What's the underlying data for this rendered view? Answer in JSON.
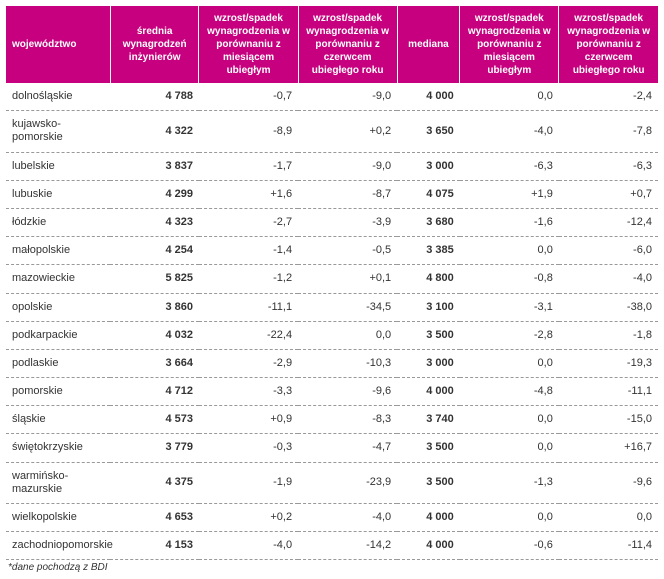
{
  "table": {
    "headers": [
      "województwo",
      "średnia wynagrodzeń inżynierów",
      "wzrost/spadek wynagrodzenia w porównaniu z miesiącem ubiegłym",
      "wzrost/spadek wynagrodzenia w porównaniu z czerwcem ubiegłego roku",
      "mediana",
      "wzrost/spadek wynagrodzenia w porównaniu z miesiącem ubiegłym",
      "wzrost/spadek wynagrodzenia w porównaniu z czerwcem ubiegłego roku"
    ],
    "rows": [
      {
        "region": "dolnośląskie",
        "avg": "4 788",
        "d1": "-0,7",
        "d2": "-9,0",
        "median": "4 000",
        "d3": "0,0",
        "d4": "-2,4"
      },
      {
        "region": "kujawsko-pomorskie",
        "avg": "4 322",
        "d1": "-8,9",
        "d2": "+0,2",
        "median": "3 650",
        "d3": "-4,0",
        "d4": "-7,8"
      },
      {
        "region": "lubelskie",
        "avg": "3 837",
        "d1": "-1,7",
        "d2": "-9,0",
        "median": "3 000",
        "d3": "-6,3",
        "d4": "-6,3"
      },
      {
        "region": "lubuskie",
        "avg": "4 299",
        "d1": "+1,6",
        "d2": "-8,7",
        "median": "4 075",
        "d3": "+1,9",
        "d4": "+0,7"
      },
      {
        "region": "łódzkie",
        "avg": "4 323",
        "d1": "-2,7",
        "d2": "-3,9",
        "median": "3 680",
        "d3": "-1,6",
        "d4": "-12,4"
      },
      {
        "region": "małopolskie",
        "avg": "4 254",
        "d1": "-1,4",
        "d2": "-0,5",
        "median": "3 385",
        "d3": "0,0",
        "d4": "-6,0"
      },
      {
        "region": "mazowieckie",
        "avg": "5 825",
        "d1": "-1,2",
        "d2": "+0,1",
        "median": "4 800",
        "d3": "-0,8",
        "d4": "-4,0"
      },
      {
        "region": "opolskie",
        "avg": "3 860",
        "d1": "-11,1",
        "d2": "-34,5",
        "median": "3 100",
        "d3": "-3,1",
        "d4": "-38,0"
      },
      {
        "region": "podkarpackie",
        "avg": "4 032",
        "d1": "-22,4",
        "d2": "0,0",
        "median": "3 500",
        "d3": "-2,8",
        "d4": "-1,8"
      },
      {
        "region": "podlaskie",
        "avg": "3 664",
        "d1": "-2,9",
        "d2": "-10,3",
        "median": "3 000",
        "d3": "0,0",
        "d4": "-19,3"
      },
      {
        "region": "pomorskie",
        "avg": "4 712",
        "d1": "-3,3",
        "d2": "-9,6",
        "median": "4 000",
        "d3": "-4,8",
        "d4": "-11,1"
      },
      {
        "region": "śląskie",
        "avg": "4 573",
        "d1": "+0,9",
        "d2": "-8,3",
        "median": "3 740",
        "d3": "0,0",
        "d4": "-15,0"
      },
      {
        "region": "świętokrzyskie",
        "avg": "3 779",
        "d1": "-0,3",
        "d2": "-4,7",
        "median": "3 500",
        "d3": "0,0",
        "d4": "+16,7"
      },
      {
        "region": "warmińsko-mazurskie",
        "avg": "4 375",
        "d1": "-1,9",
        "d2": "-23,9",
        "median": "3 500",
        "d3": "-1,3",
        "d4": "-9,6"
      },
      {
        "region": "wielkopolskie",
        "avg": "4 653",
        "d1": "+0,2",
        "d2": "-4,0",
        "median": "4 000",
        "d3": "0,0",
        "d4": "0,0"
      },
      {
        "region": "zachodniopomorskie",
        "avg": "4 153",
        "d1": "-4,0",
        "d2": "-14,2",
        "median": "4 000",
        "d3": "-0,6",
        "d4": "-11,4"
      }
    ],
    "footnote": "*dane pochodzą z BDI",
    "header_bg": "#c6007e",
    "header_fg": "#ffffff",
    "row_border_color": "#999999",
    "text_color": "#333333"
  }
}
